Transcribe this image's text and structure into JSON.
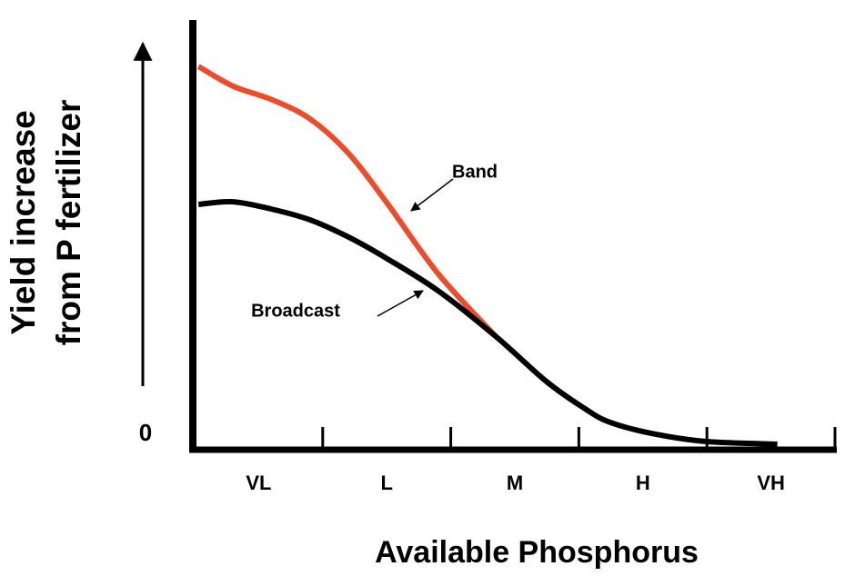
{
  "chart_data": {
    "type": "line",
    "y_label_lines": [
      "Yield increase",
      "from P fertilizer"
    ],
    "x_label": "Available Phosphorus",
    "categories": [
      "VL",
      "L",
      "M",
      "H",
      "VH"
    ],
    "xlim": [
      0,
      5
    ],
    "xticks": [
      1,
      2,
      3,
      4,
      5
    ],
    "ylim": [
      0,
      100
    ],
    "yticks": [
      0
    ],
    "x": [
      0.03,
      0.3,
      0.6,
      0.9,
      1.2,
      1.5,
      1.9,
      2.35,
      2.75,
      3.05,
      3.25,
      3.6,
      4.0,
      4.55
    ],
    "series": [
      {
        "name": "Band",
        "color": "#ee4b2b",
        "values": [
          89.2,
          84.6,
          81.5,
          77,
          69,
          57.5,
          41,
          26.4,
          null,
          null,
          null,
          null,
          null,
          null
        ]
      },
      {
        "name": "Broadcast",
        "color": "#000000",
        "values": [
          57.1,
          57.7,
          56.0,
          53.5,
          49.5,
          44.5,
          37.0,
          26.4,
          15.8,
          9.5,
          6.3,
          3.6,
          1.9,
          1.3
        ]
      }
    ]
  }
}
